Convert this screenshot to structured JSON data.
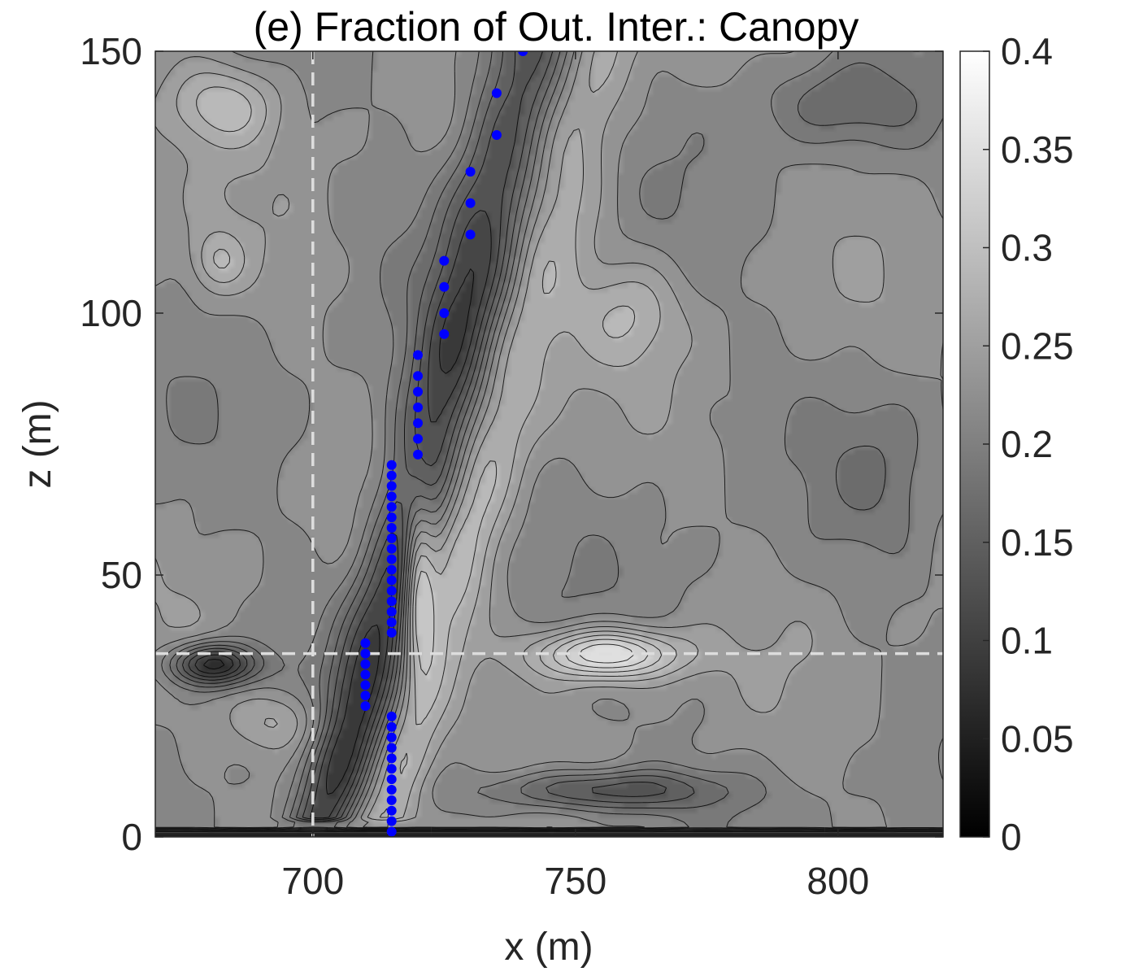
{
  "chart_data": {
    "type": "heatmap",
    "title": "(e) Fraction of Out. Inter.: Canopy",
    "xlabel": "x (m)",
    "ylabel": "z (m)",
    "xlim": [
      670,
      820
    ],
    "ylim": [
      0,
      150
    ],
    "x_ticks": [
      700,
      750,
      800
    ],
    "y_ticks": [
      0,
      50,
      100,
      150
    ],
    "colormap": "gray",
    "clim": [
      0,
      0.4
    ],
    "colorbar_ticks": [
      "0",
      "0.05",
      "0.1",
      "0.15",
      "0.2",
      "0.25",
      "0.3",
      "0.35",
      "0.4"
    ],
    "colorbar_values": [
      0,
      0.05,
      0.1,
      0.15,
      0.2,
      0.25,
      0.3,
      0.35,
      0.4
    ],
    "contour_lines": true,
    "reference_lines": {
      "vertical_x": 700,
      "horizontal_z": 35,
      "style": "dashed",
      "color": "#dddddd"
    },
    "background_level": 0.22,
    "field_features": [
      {
        "name": "dark-shear-band",
        "x0": 700,
        "z0": 0,
        "x1": 742,
        "z1": 150,
        "value": 0.1
      },
      {
        "name": "light-band-right",
        "x0": 712,
        "z0": 0,
        "x1": 752,
        "z1": 150,
        "value": 0.29
      },
      {
        "name": "bright-blob",
        "x": 756,
        "z": 35,
        "sx": 14,
        "sz": 5,
        "value": 0.37
      },
      {
        "name": "light-column",
        "x": 720,
        "z": 50,
        "sx": 3,
        "sz": 16,
        "value": 0.34
      },
      {
        "name": "dark-left-blob",
        "x": 681,
        "z": 33,
        "sx": 8,
        "sz": 4,
        "value": 0.06
      },
      {
        "name": "dark-lower-right",
        "x": 755,
        "z": 9,
        "sx": 22,
        "sz": 4,
        "value": 0.12
      },
      {
        "name": "light-left-top",
        "x": 683,
        "z": 140,
        "sx": 11,
        "sz": 8,
        "value": 0.29
      },
      {
        "name": "light-left-mid",
        "x": 682,
        "z": 110,
        "sx": 5,
        "sz": 6,
        "value": 0.27
      },
      {
        "name": "light-mid-right",
        "x": 760,
        "z": 100,
        "sx": 10,
        "sz": 10,
        "value": 0.27
      },
      {
        "name": "dark-top-right",
        "x": 800,
        "z": 140,
        "sx": 15,
        "sz": 8,
        "value": 0.17
      },
      {
        "name": "light-lower-left",
        "x": 694,
        "z": 22,
        "sx": 9,
        "sz": 6,
        "value": 0.27
      },
      {
        "name": "dark-right-mid",
        "x": 808,
        "z": 70,
        "sx": 11,
        "sz": 16,
        "value": 0.19
      },
      {
        "name": "ground-dark",
        "x0": 670,
        "z0": 0,
        "x1": 820,
        "z1": 1.5,
        "value": 0.02
      }
    ],
    "series": [
      {
        "marker_color": "#0000ff",
        "marker": "circle",
        "points": [
          [
            715,
            1
          ],
          [
            715,
            3
          ],
          [
            715,
            5
          ],
          [
            715,
            7
          ],
          [
            715,
            9
          ],
          [
            715,
            11
          ],
          [
            715,
            13
          ],
          [
            715,
            15
          ],
          [
            715,
            17
          ],
          [
            715,
            19
          ],
          [
            715,
            21
          ],
          [
            715,
            23
          ],
          [
            710,
            25
          ],
          [
            710,
            27
          ],
          [
            710,
            29
          ],
          [
            710,
            31
          ],
          [
            710,
            33
          ],
          [
            710,
            35
          ],
          [
            710,
            37
          ],
          [
            715,
            39
          ],
          [
            715,
            41
          ],
          [
            715,
            43
          ],
          [
            715,
            45
          ],
          [
            715,
            47
          ],
          [
            715,
            49
          ],
          [
            715,
            51
          ],
          [
            715,
            53
          ],
          [
            715,
            55
          ],
          [
            715,
            57
          ],
          [
            715,
            59
          ],
          [
            715,
            61
          ],
          [
            715,
            63
          ],
          [
            715,
            65
          ],
          [
            715,
            67
          ],
          [
            715,
            69
          ],
          [
            715,
            71
          ],
          [
            720,
            73
          ],
          [
            720,
            76
          ],
          [
            720,
            79
          ],
          [
            720,
            82
          ],
          [
            720,
            85
          ],
          [
            720,
            88
          ],
          [
            720,
            92
          ],
          [
            725,
            96
          ],
          [
            725,
            100
          ],
          [
            725,
            105
          ],
          [
            725,
            110
          ],
          [
            730,
            115
          ],
          [
            730,
            121
          ],
          [
            730,
            127
          ],
          [
            735,
            134
          ],
          [
            735,
            142
          ],
          [
            740,
            150
          ]
        ]
      }
    ]
  }
}
